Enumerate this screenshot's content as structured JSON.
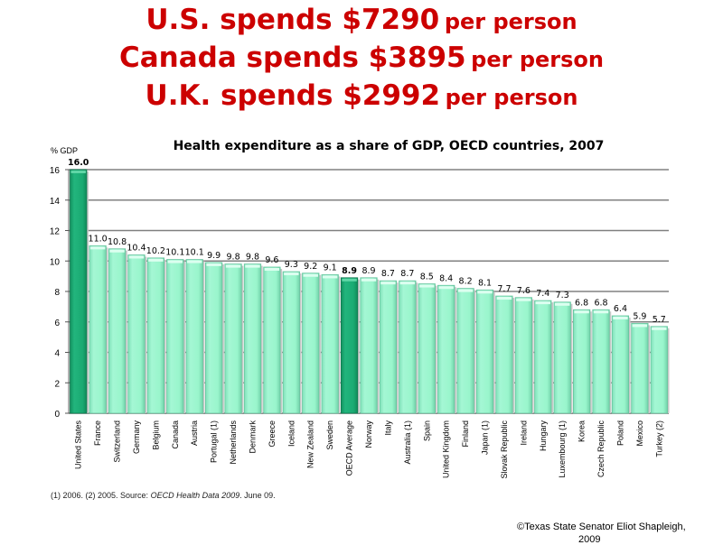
{
  "headlines": [
    {
      "main": "U.S. spends $7290",
      "suffix": "per person"
    },
    {
      "main": "Canada spends $3895",
      "suffix": "per person"
    },
    {
      "main": "U.K. spends $2992",
      "suffix": "per person"
    }
  ],
  "chart_data": {
    "type": "bar",
    "title": "Health expenditure as a share of GDP, OECD countries, 2007",
    "ylabel": "% GDP",
    "xlabel": "",
    "ylim": [
      0,
      16
    ],
    "yticks": [
      0,
      2,
      4,
      6,
      8,
      10,
      12,
      14,
      16
    ],
    "grid": true,
    "legend": "none",
    "categories": [
      "United States",
      "France",
      "Switzerland",
      "Germany",
      "Belgium",
      "Canada",
      "Austria",
      "Portugal (1)",
      "Netherlands",
      "Denmark",
      "Greece",
      "Iceland",
      "New Zealand",
      "Sweden",
      "OECD Average",
      "Norway",
      "Italy",
      "Australia (1)",
      "Spain",
      "United Kingdom",
      "Finland",
      "Japan (1)",
      "Slovak Republic",
      "Ireland",
      "Hungary",
      "Luxembourg (1)",
      "Korea",
      "Czech Republic",
      "Poland",
      "Mexico",
      "Turkey (2)"
    ],
    "values": [
      16.0,
      11.0,
      10.8,
      10.4,
      10.2,
      10.1,
      10.1,
      9.9,
      9.8,
      9.8,
      9.6,
      9.3,
      9.2,
      9.1,
      8.9,
      8.9,
      8.7,
      8.7,
      8.5,
      8.4,
      8.2,
      8.1,
      7.7,
      7.6,
      7.4,
      7.3,
      6.8,
      6.8,
      6.4,
      5.9,
      5.7
    ],
    "value_labels": [
      "16.0",
      "11.0",
      "10.8",
      "10.4",
      "10.2",
      "10.1",
      "10.1",
      "9.9",
      "9.8",
      "9.8",
      "9.6",
      "9.3",
      "9.2",
      "9.1",
      "8.9",
      "8.9",
      "8.7",
      "8.7",
      "8.5",
      "8.4",
      "8.2",
      "8.1",
      "7.7",
      "7.6",
      "7.4",
      "7.3",
      "6.8",
      "6.8",
      "6.4",
      "5.9",
      "5.7"
    ],
    "highlighted": [
      "United States",
      "OECD Average"
    ],
    "colors": {
      "bar": "#99f5cc",
      "bar_edge": "#66c49e",
      "highlight": "#1aaa72",
      "highlight_edge": "#0f7a50",
      "grid": "#808080"
    }
  },
  "footnote": {
    "prefix": "(1) 2006. (2) 2005.   Source: ",
    "source": "OECD Health Data 2009",
    "suffix": ". June 09."
  },
  "copyright": "©Texas State Senator Eliot Shapleigh,",
  "copyright_year": "2009"
}
